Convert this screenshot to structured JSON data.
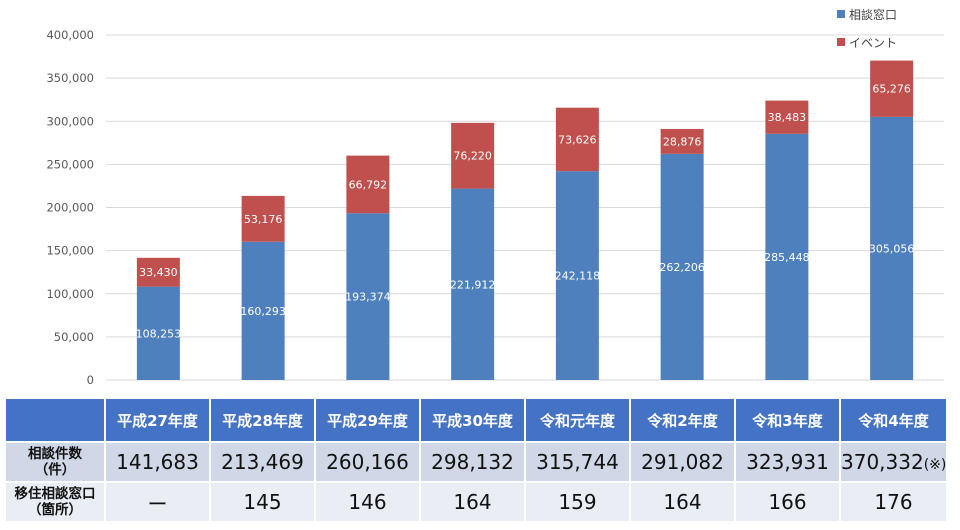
{
  "colors": {
    "consult": "#4e80bd",
    "event": "#c0504d",
    "axis_text": "#595959",
    "grid": "#d9d9d9",
    "table_header": "#4472c4",
    "table_row1": "#d0d7e6",
    "table_row2": "#e9edf4"
  },
  "chart_data": {
    "type": "bar",
    "stacked": true,
    "categories": [
      "平成27年度",
      "平成28年度",
      "平成29年度",
      "平成30年度",
      "令和元年度",
      "令和2年度",
      "令和3年度",
      "令和4年度"
    ],
    "series": [
      {
        "name": "相談窓口",
        "values": [
          108253,
          160293,
          193374,
          221912,
          242118,
          262206,
          285448,
          305056
        ]
      },
      {
        "name": "イベント",
        "values": [
          33430,
          53176,
          66792,
          76220,
          73626,
          28876,
          38483,
          65276
        ]
      }
    ],
    "ylim": [
      0,
      400000
    ],
    "yticks": [
      0,
      50000,
      100000,
      150000,
      200000,
      250000,
      300000,
      350000,
      400000
    ],
    "ytick_labels": [
      "0",
      "50,000",
      "100,000",
      "150,000",
      "200,000",
      "250,000",
      "300,000",
      "350,000",
      "400,000"
    ],
    "value_labels": [
      [
        "108,253",
        "160,293",
        "193,374",
        "221,912",
        "242,118",
        "262,206",
        "285,448",
        "305,056"
      ],
      [
        "33,430",
        "53,176",
        "66,792",
        "76,220",
        "73,626",
        "28,876",
        "38,483",
        "65,276"
      ]
    ],
    "grid": true,
    "legend_position": "top-right"
  },
  "table": {
    "headers": [
      "平成27年度",
      "平成28年度",
      "平成29年度",
      "平成30年度",
      "令和元年度",
      "令和2年度",
      "令和3年度",
      "令和4年度"
    ],
    "rows": [
      {
        "label_line1": "相談件数",
        "label_line2": "（件）",
        "values": [
          "141,683",
          "213,469",
          "260,166",
          "298,132",
          "315,744",
          "291,082",
          "323,931",
          "370,332"
        ],
        "note": "(※)"
      },
      {
        "label_line1": "移住相談窓口",
        "label_line2": "（箇所）",
        "values": [
          "ー",
          "145",
          "146",
          "164",
          "159",
          "164",
          "166",
          "176"
        ]
      }
    ]
  }
}
